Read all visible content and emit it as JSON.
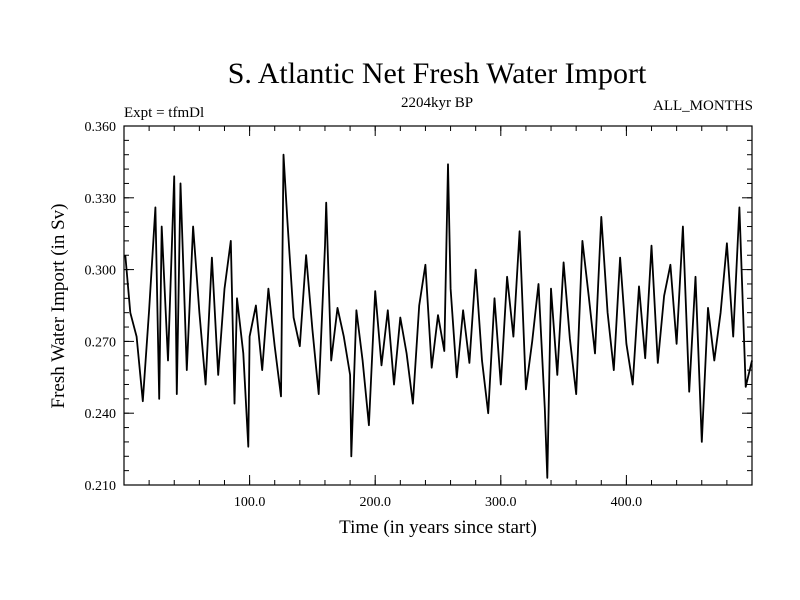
{
  "chart_data": {
    "type": "line",
    "title": "S. Atlantic Net Fresh Water Import",
    "subtitle": "2204kyr BP",
    "experiment_label": "Expt = tfmDl",
    "period_label": "ALL_MONTHS",
    "xlabel": "Time (in years since start)",
    "ylabel": "Fresh Water Import (in Sv)",
    "xlim": [
      0,
      500
    ],
    "ylim": [
      0.21,
      0.36
    ],
    "xticks": [
      100,
      200,
      300,
      400
    ],
    "xtick_labels": [
      "100.0",
      "200.0",
      "300.0",
      "400.0"
    ],
    "yticks": [
      0.21,
      0.24,
      0.27,
      0.3,
      0.33,
      0.36
    ],
    "ytick_labels": [
      "0.210",
      "0.240",
      "0.270",
      "0.300",
      "0.330",
      "0.360"
    ],
    "x_minor_step": 20,
    "y_minor_step": 0.006,
    "grid": false,
    "legend": "none",
    "series": [
      {
        "name": "Fresh Water Import",
        "color": "#000000",
        "x": [
          1,
          5,
          10,
          15,
          20,
          25,
          28,
          30,
          35,
          40,
          42,
          45,
          50,
          55,
          60,
          65,
          70,
          75,
          80,
          85,
          88,
          90,
          95,
          99,
          100,
          105,
          110,
          115,
          120,
          125,
          127,
          130,
          135,
          140,
          145,
          150,
          155,
          160,
          161,
          165,
          170,
          175,
          180,
          181,
          185,
          190,
          195,
          200,
          205,
          210,
          215,
          220,
          225,
          230,
          235,
          240,
          245,
          250,
          255,
          258,
          260,
          265,
          270,
          275,
          280,
          285,
          290,
          295,
          300,
          305,
          310,
          315,
          320,
          325,
          330,
          335,
          337,
          340,
          345,
          350,
          355,
          360,
          365,
          370,
          375,
          380,
          385,
          390,
          395,
          400,
          405,
          410,
          415,
          420,
          425,
          430,
          435,
          440,
          445,
          450,
          455,
          460,
          465,
          470,
          475,
          480,
          485,
          490,
          495,
          500
        ],
        "y": [
          0.306,
          0.282,
          0.272,
          0.245,
          0.283,
          0.326,
          0.246,
          0.318,
          0.262,
          0.339,
          0.248,
          0.336,
          0.258,
          0.318,
          0.282,
          0.252,
          0.305,
          0.256,
          0.292,
          0.312,
          0.244,
          0.288,
          0.265,
          0.226,
          0.272,
          0.285,
          0.258,
          0.292,
          0.268,
          0.247,
          0.348,
          0.321,
          0.28,
          0.268,
          0.306,
          0.275,
          0.248,
          0.31,
          0.328,
          0.262,
          0.284,
          0.272,
          0.256,
          0.222,
          0.283,
          0.262,
          0.235,
          0.291,
          0.26,
          0.283,
          0.252,
          0.28,
          0.265,
          0.244,
          0.285,
          0.302,
          0.259,
          0.281,
          0.266,
          0.344,
          0.292,
          0.255,
          0.283,
          0.261,
          0.3,
          0.262,
          0.24,
          0.288,
          0.252,
          0.297,
          0.272,
          0.316,
          0.25,
          0.27,
          0.294,
          0.242,
          0.213,
          0.292,
          0.256,
          0.303,
          0.271,
          0.248,
          0.312,
          0.289,
          0.265,
          0.322,
          0.282,
          0.258,
          0.305,
          0.269,
          0.252,
          0.293,
          0.263,
          0.31,
          0.261,
          0.289,
          0.302,
          0.269,
          0.318,
          0.249,
          0.297,
          0.228,
          0.284,
          0.262,
          0.282,
          0.311,
          0.272,
          0.326,
          0.251,
          0.262
        ]
      }
    ]
  }
}
